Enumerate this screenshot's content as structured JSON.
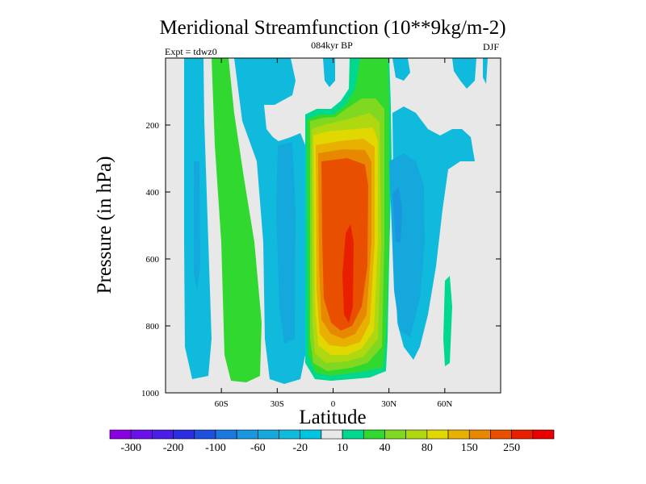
{
  "title": "Meridional Streamfunction (10**9kg/m-2)",
  "subtitle": "084kyr BP",
  "left_label": "Expt = tdwz0",
  "right_label": "DJF",
  "chart_data": {
    "type": "heatmap",
    "xlabel": "Latitude",
    "ylabel": "Pressure (in hPa)",
    "xlim": [
      -90,
      90
    ],
    "ylim": [
      0,
      1000
    ],
    "y_reversed": true,
    "xticks": [
      {
        "value": -60,
        "label": "60S"
      },
      {
        "value": -30,
        "label": "30S"
      },
      {
        "value": 0,
        "label": "0"
      },
      {
        "value": 30,
        "label": "30N"
      },
      {
        "value": 60,
        "label": "60N"
      }
    ],
    "yticks": [
      {
        "value": 200,
        "label": "200"
      },
      {
        "value": 400,
        "label": "400"
      },
      {
        "value": 600,
        "label": "600"
      },
      {
        "value": 800,
        "label": "800"
      },
      {
        "value": 1000,
        "label": "1000"
      }
    ],
    "levels": [
      -300,
      -250,
      -200,
      -150,
      -100,
      -80,
      -60,
      -40,
      -20,
      -10,
      10,
      20,
      40,
      60,
      80,
      100,
      150,
      200,
      250,
      300
    ],
    "colorbar_labels": [
      "-300",
      "-200",
      "-100",
      "-60",
      "-20",
      "10",
      "40",
      "80",
      "150",
      "250"
    ],
    "colors": [
      "#8a00e0",
      "#6a10e8",
      "#4a1ee8",
      "#2a2ee0",
      "#1e50e0",
      "#1a78e0",
      "#1896e0",
      "#15a8dc",
      "#10badc",
      "#00c4e0",
      "#e8e8e8",
      "#00d890",
      "#30d830",
      "#80d820",
      "#b0d810",
      "#e0d800",
      "#e8b000",
      "#e88800",
      "#e85000",
      "#e82000",
      "#e80000"
    ],
    "zero_band_color": "#e8e8e8",
    "regions": [
      {
        "value": -25,
        "lat": [
          -80,
          -70
        ],
        "p": [
          0,
          1000
        ],
        "note": "southern high-latitude negative cell"
      },
      {
        "value": 25,
        "lat": [
          -62,
          -45
        ],
        "p": [
          0,
          1000
        ]
      },
      {
        "value": -25,
        "lat": [
          -35,
          -25
        ],
        "p": [
          150,
          1000
        ]
      },
      {
        "value": 180,
        "lat": [
          -5,
          15
        ],
        "p": [
          300,
          950
        ]
      },
      {
        "value": 280,
        "lat": [
          5,
          10
        ],
        "p": [
          500,
          850
        ]
      },
      {
        "value": -40,
        "lat": [
          30,
          40
        ],
        "p": [
          300,
          550
        ]
      },
      {
        "value": -20,
        "lat": [
          25,
          50
        ],
        "p": [
          100,
          1000
        ]
      },
      {
        "value": 15,
        "lat": [
          60,
          62
        ],
        "p": [
          700,
          900
        ]
      }
    ]
  }
}
